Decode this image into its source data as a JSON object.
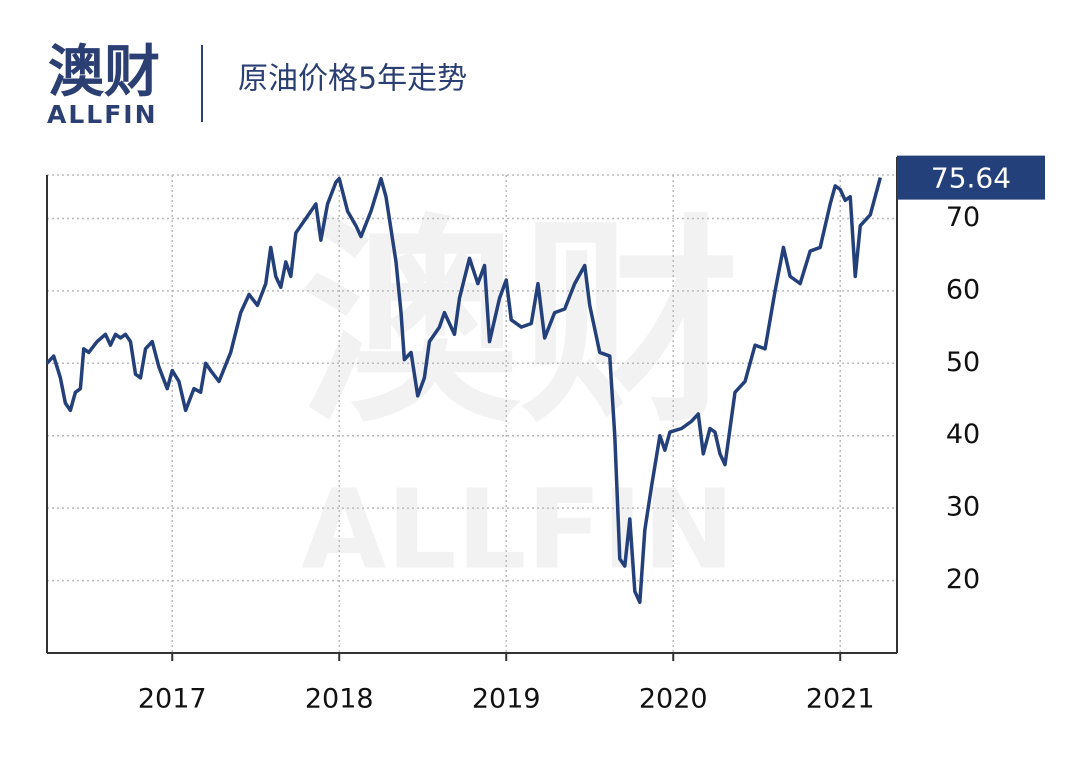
{
  "logo": {
    "name": "澳财",
    "sub": "ALLFIN"
  },
  "chart_data": {
    "type": "line",
    "title": "原油价格5年走势",
    "xlim": [
      2016.25,
      2021.34
    ],
    "xticks": [
      2017,
      2018,
      2019,
      2020,
      2021
    ],
    "ylim": [
      10,
      76
    ],
    "yticks": [
      20,
      30,
      40,
      50,
      60,
      70
    ],
    "grid": true,
    "series": [
      {
        "name": "原油价格",
        "color": "#24407a",
        "x": [
          2016.25,
          2016.29,
          2016.33,
          2016.36,
          2016.39,
          2016.42,
          2016.45,
          2016.47,
          2016.5,
          2016.55,
          2016.6,
          2016.63,
          2016.66,
          2016.69,
          2016.72,
          2016.75,
          2016.78,
          2016.81,
          2016.84,
          2016.88,
          2016.92,
          2016.97,
          2017.0,
          2017.04,
          2017.08,
          2017.13,
          2017.17,
          2017.2,
          2017.23,
          2017.28,
          2017.35,
          2017.41,
          2017.46,
          2017.51,
          2017.56,
          2017.59,
          2017.62,
          2017.65,
          2017.68,
          2017.71,
          2017.74,
          2017.8,
          2017.86,
          2017.89,
          2017.93,
          2017.98,
          2018.0,
          2018.05,
          2018.1,
          2018.13,
          2018.19,
          2018.25,
          2018.28,
          2018.34,
          2018.37,
          2018.39,
          2018.43,
          2018.47,
          2018.51,
          2018.54,
          2018.6,
          2018.63,
          2018.69,
          2018.72,
          2018.78,
          2018.83,
          2018.87,
          2018.9,
          2018.96,
          2019.0,
          2019.03,
          2019.09,
          2019.15,
          2019.19,
          2019.23,
          2019.29,
          2019.35,
          2019.41,
          2019.47,
          2019.5,
          2019.56,
          2019.62,
          2019.65,
          2019.68,
          2019.71,
          2019.74,
          2019.77,
          2019.8,
          2019.83,
          2019.87,
          2019.92,
          2019.95,
          2019.98,
          2020.05,
          2020.11,
          2020.15,
          2020.18,
          2020.22,
          2020.25,
          2020.28,
          2020.31,
          2020.37,
          2020.43,
          2020.49,
          2020.55,
          2020.61,
          2020.66,
          2020.7,
          2020.76,
          2020.82,
          2020.88,
          2020.94,
          2020.97,
          2021.0,
          2021.03,
          2021.06,
          2021.09,
          2021.12,
          2021.18,
          2021.24
        ],
        "values": [
          50,
          51,
          48,
          44.5,
          43.5,
          46,
          46.5,
          52,
          51.5,
          53,
          54,
          52.5,
          54,
          53.5,
          54,
          53,
          48.5,
          48,
          52,
          53,
          49.5,
          46.5,
          49,
          47.5,
          43.5,
          46.5,
          46,
          50,
          49,
          47.5,
          51.5,
          57,
          59.5,
          58,
          61,
          66,
          62,
          60.5,
          64,
          62,
          68,
          70,
          72,
          67,
          72,
          75,
          75.5,
          71,
          69,
          67.5,
          71,
          75.5,
          73,
          64,
          57,
          50.5,
          51.5,
          45.5,
          48,
          53,
          55,
          57,
          54,
          59,
          64.5,
          61,
          63.5,
          53,
          59,
          61.5,
          56,
          55,
          55.5,
          61,
          53.5,
          57,
          57.5,
          61,
          63.5,
          58,
          51.5,
          51,
          40,
          23,
          22,
          28.5,
          18.5,
          17,
          27,
          33,
          40,
          38,
          40.5,
          41,
          42,
          43,
          37.5,
          41,
          40.5,
          37.5,
          36,
          46,
          47.5,
          52.5,
          52,
          60,
          66,
          62,
          61,
          65.5,
          66,
          72,
          74.5,
          74,
          72.5,
          73,
          62,
          69,
          70.5,
          75.64
        ]
      }
    ]
  }
}
